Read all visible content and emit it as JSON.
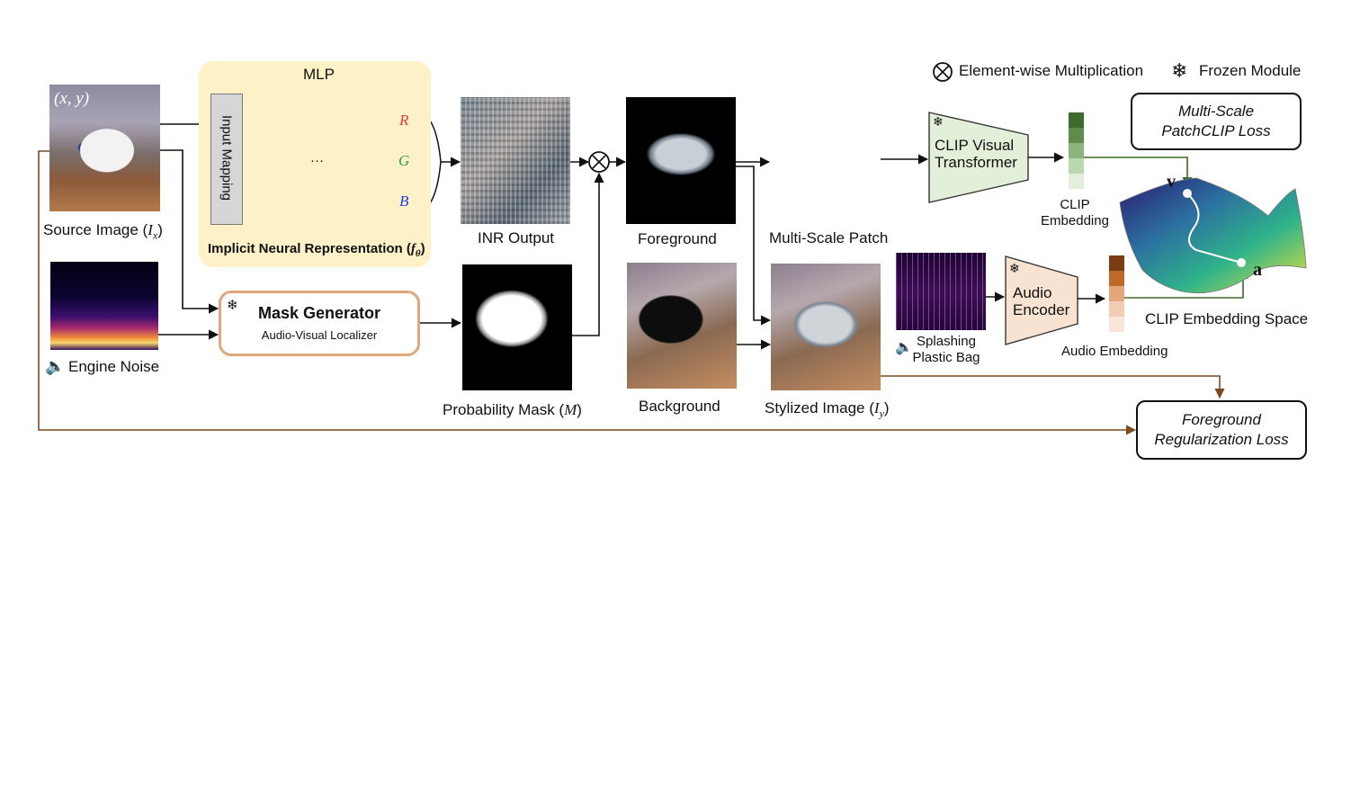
{
  "legend": {
    "elementwise": "Element-wise Multiplication",
    "frozen": "Frozen Module"
  },
  "source": {
    "coord": "(x, y)",
    "label": "Source Image (",
    "label_sym": "I",
    "label_sub": "x",
    "label_end": ")"
  },
  "mlp": {
    "title": "MLP",
    "input_mapping": "Input Mapping",
    "inr_label": "Implicit Neural Representation (",
    "inr_sym": "f",
    "inr_sub": "θ",
    "inr_end": ")",
    "out_r": "R",
    "out_g": "G",
    "out_b": "B",
    "dots": "···"
  },
  "engine": {
    "label": "Engine Noise"
  },
  "mask_generator": {
    "title": "Mask Generator",
    "subtitle": "Audio-Visual Localizer"
  },
  "inr_output": {
    "label": "INR Output"
  },
  "prob_mask": {
    "label": "Probability Mask (",
    "sym": "M",
    "end": ")"
  },
  "foreground": {
    "label": "Foreground"
  },
  "background": {
    "label": "Background"
  },
  "multiscale": {
    "label": "Multi-Scale Patch"
  },
  "stylized": {
    "label": "Stylized Image (",
    "sym": "I",
    "sub": "y",
    "end": ")"
  },
  "clip_visual": {
    "line1": "CLIP Visual",
    "line2": "Transformer"
  },
  "clip_embedding": {
    "line1": "CLIP",
    "line2": "Embedding"
  },
  "splashing": {
    "line1": "Splashing",
    "line2": "Plastic Bag"
  },
  "audio_encoder": {
    "line1": "Audio",
    "line2": "Encoder"
  },
  "audio_embedding": {
    "label": "Audio Embedding"
  },
  "patchclip_loss": {
    "line1": "Multi-Scale",
    "line2": "PatchCLIP Loss"
  },
  "embedding_space": {
    "label": "CLIP Embedding Space",
    "v": "v",
    "a": "a"
  },
  "fg_loss": {
    "line1": "Foreground",
    "line2": "Regularization Loss"
  },
  "colors": {
    "arrow": "#111111",
    "brown_arrow": "#7a4a22",
    "green_arrow": "#3e6b2a",
    "mlp_panel": "#fdf1c7",
    "mask_border": "#e0a87a",
    "clip_fill": "#e2efd9",
    "audio_fill": "#f8e2d2",
    "r_color": "#e53935",
    "g_color": "#2e9e4f",
    "b_color": "#1e40d8"
  }
}
